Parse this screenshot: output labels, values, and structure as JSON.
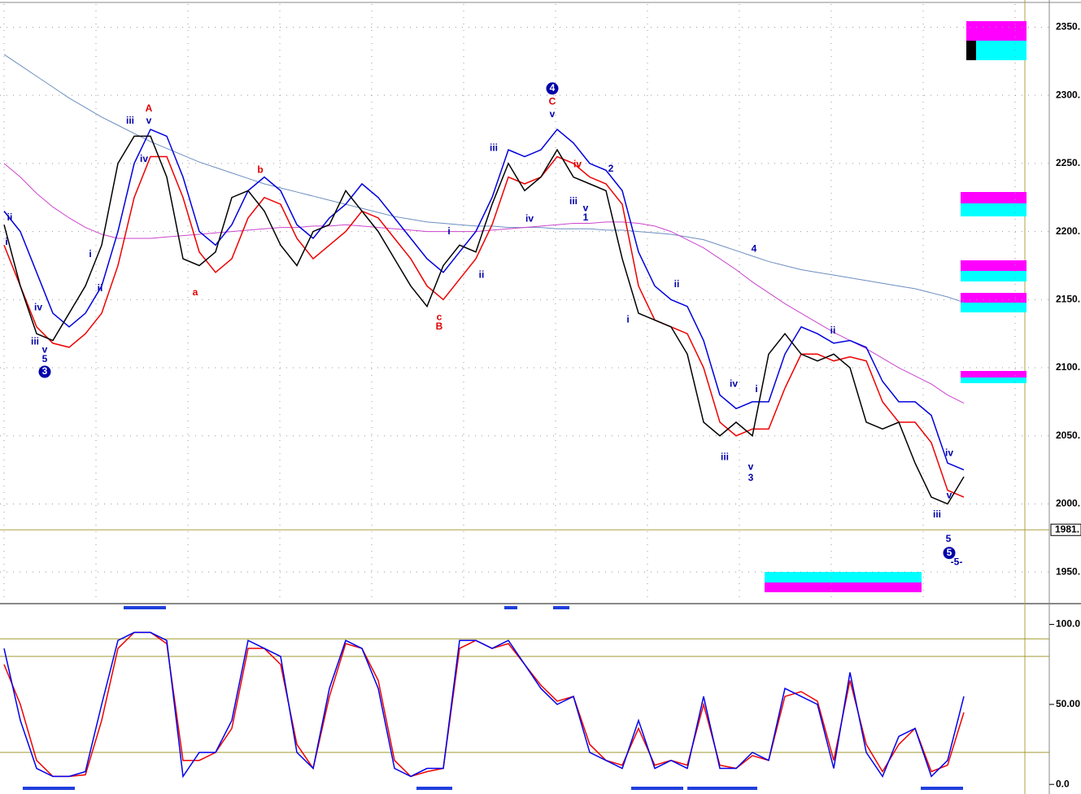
{
  "chart_data": [
    {
      "type": "line",
      "ylim": [
        1928,
        2367
      ],
      "yticks": [
        {
          "value": 1950,
          "label": "1950."
        },
        {
          "value": 2000,
          "label": "2000."
        },
        {
          "value": 2050,
          "label": "2050."
        },
        {
          "value": 2100,
          "label": "2100."
        },
        {
          "value": 2150,
          "label": "2150."
        },
        {
          "value": 2200,
          "label": "2200."
        },
        {
          "value": 2250,
          "label": "2250."
        },
        {
          "value": 2300,
          "label": "2300."
        },
        {
          "value": 2350,
          "label": "2350."
        }
      ],
      "grid": true,
      "last_price": {
        "value": 1981,
        "label": "1981."
      },
      "series": [
        {
          "color": "#6c8ec0",
          "width": 1,
          "values": [
            2330,
            2322,
            2314,
            2306,
            2298,
            2291,
            2284,
            2278,
            2272,
            2266,
            2261,
            2256,
            2251,
            2247,
            2243,
            2239,
            2235,
            2232,
            2229,
            2226,
            2223,
            2220,
            2217,
            2214,
            2211,
            2209,
            2207,
            2206,
            2205,
            2204,
            2204,
            2203,
            2203,
            2203,
            2202,
            2202,
            2202,
            2201,
            2201,
            2200,
            2199,
            2198,
            2196,
            2194,
            2190,
            2186,
            2182,
            2178,
            2175,
            2172,
            2170,
            2168,
            2166,
            2164,
            2162,
            2160,
            2158,
            2155,
            2152,
            2148
          ]
        },
        {
          "color": "#cc44cc",
          "width": 1,
          "values": [
            2250,
            2240,
            2228,
            2218,
            2210,
            2203,
            2198,
            2195,
            2195,
            2195,
            2196,
            2197,
            2198,
            2199,
            2200,
            2201,
            2202,
            2203,
            2203,
            2204,
            2204,
            2205,
            2204,
            2203,
            2202,
            2201,
            2200,
            2200,
            2200,
            2200,
            2201,
            2202,
            2203,
            2204,
            2205,
            2206,
            2206,
            2207,
            2207,
            2206,
            2204,
            2200,
            2194,
            2188,
            2180,
            2172,
            2163,
            2155,
            2147,
            2140,
            2133,
            2126,
            2120,
            2114,
            2107,
            2100,
            2094,
            2088,
            2080,
            2074
          ]
        },
        {
          "color": "#0000dd",
          "width": 1.5,
          "values": [
            2215,
            2200,
            2170,
            2140,
            2130,
            2140,
            2160,
            2200,
            2250,
            2275,
            2270,
            2240,
            2200,
            2190,
            2205,
            2230,
            2240,
            2230,
            2205,
            2195,
            2210,
            2220,
            2235,
            2225,
            2210,
            2195,
            2180,
            2170,
            2185,
            2200,
            2225,
            2260,
            2255,
            2260,
            2275,
            2265,
            2250,
            2245,
            2230,
            2185,
            2160,
            2150,
            2145,
            2120,
            2080,
            2070,
            2075,
            2075,
            2110,
            2130,
            2125,
            2118,
            2120,
            2115,
            2090,
            2075,
            2075,
            2065,
            2030,
            2025
          ]
        },
        {
          "color": "#ee0000",
          "width": 1.5,
          "values": [
            2190,
            2160,
            2130,
            2118,
            2115,
            2125,
            2140,
            2175,
            2225,
            2255,
            2255,
            2225,
            2185,
            2170,
            2180,
            2210,
            2225,
            2220,
            2195,
            2180,
            2190,
            2200,
            2215,
            2210,
            2195,
            2180,
            2160,
            2150,
            2165,
            2180,
            2205,
            2240,
            2235,
            2240,
            2255,
            2250,
            2240,
            2235,
            2220,
            2160,
            2135,
            2130,
            2125,
            2100,
            2060,
            2050,
            2055,
            2055,
            2085,
            2110,
            2110,
            2105,
            2108,
            2105,
            2075,
            2060,
            2060,
            2045,
            2010,
            2005
          ]
        },
        {
          "color": "#000000",
          "width": 1.5,
          "values": [
            2205,
            2160,
            2125,
            2120,
            2140,
            2160,
            2190,
            2250,
            2270,
            2270,
            2240,
            2180,
            2175,
            2185,
            2225,
            2230,
            2215,
            2190,
            2175,
            2200,
            2205,
            2230,
            2215,
            2200,
            2180,
            2160,
            2145,
            2175,
            2190,
            2185,
            2220,
            2250,
            2230,
            2240,
            2260,
            2240,
            2235,
            2230,
            2180,
            2140,
            2135,
            2130,
            2110,
            2060,
            2050,
            2060,
            2050,
            2110,
            2125,
            2110,
            2105,
            2110,
            2100,
            2060,
            2055,
            2060,
            2030,
            2005,
            2000,
            2020
          ]
        }
      ],
      "annotations": [
        {
          "text": "3",
          "x": 2.5,
          "y": 2097,
          "color": "#0000aa",
          "circled": true
        },
        {
          "text": "5",
          "x": 2.5,
          "y": 2106,
          "color": "#0000aa"
        },
        {
          "text": "v",
          "x": 2.5,
          "y": 2113,
          "color": "#0000aa"
        },
        {
          "text": "iii",
          "x": 1.9,
          "y": 2119,
          "color": "#0000aa"
        },
        {
          "text": "iv",
          "x": 2.1,
          "y": 2144,
          "color": "#0000aa"
        },
        {
          "text": "ii",
          "x": 0.35,
          "y": 2210,
          "color": "#0000aa"
        },
        {
          "text": "i",
          "x": 0.15,
          "y": 2192,
          "color": "#0000aa"
        },
        {
          "text": "i",
          "x": 5.3,
          "y": 2183,
          "color": "#0000aa"
        },
        {
          "text": "ii",
          "x": 5.9,
          "y": 2158,
          "color": "#0000aa"
        },
        {
          "text": "iii",
          "x": 7.75,
          "y": 2281,
          "color": "#0000aa"
        },
        {
          "text": "v",
          "x": 8.9,
          "y": 2281,
          "color": "#0000aa"
        },
        {
          "text": "A",
          "x": 8.9,
          "y": 2290,
          "color": "#dd0000"
        },
        {
          "text": "iv",
          "x": 8.6,
          "y": 2253,
          "color": "#0000aa"
        },
        {
          "text": "a",
          "x": 11.75,
          "y": 2155,
          "color": "#dd0000"
        },
        {
          "text": "b",
          "x": 15.75,
          "y": 2245,
          "color": "#dd0000"
        },
        {
          "text": "c",
          "x": 26.75,
          "y": 2137,
          "color": "#dd0000"
        },
        {
          "text": "B",
          "x": 26.75,
          "y": 2130,
          "color": "#dd0000"
        },
        {
          "text": "i",
          "x": 27.35,
          "y": 2200,
          "color": "#0000aa"
        },
        {
          "text": "ii",
          "x": 29.35,
          "y": 2168,
          "color": "#0000aa"
        },
        {
          "text": "iii",
          "x": 30.1,
          "y": 2261,
          "color": "#0000aa"
        },
        {
          "text": "iv",
          "x": 32.3,
          "y": 2209,
          "color": "#0000aa"
        },
        {
          "text": "4",
          "x": 33.7,
          "y": 2305,
          "color": "#0000aa",
          "circled": true
        },
        {
          "text": "C",
          "x": 33.7,
          "y": 2295,
          "color": "#dd0000"
        },
        {
          "text": "v",
          "x": 33.7,
          "y": 2286,
          "color": "#0000aa"
        },
        {
          "text": "iv",
          "x": 35.25,
          "y": 2249,
          "color": "#dd0000"
        },
        {
          "text": "iii",
          "x": 35,
          "y": 2222,
          "color": "#0000aa"
        },
        {
          "text": "v",
          "x": 35.75,
          "y": 2217,
          "color": "#0000aa"
        },
        {
          "text": "1",
          "x": 35.75,
          "y": 2210,
          "color": "#0000aa"
        },
        {
          "text": "2",
          "x": 37.3,
          "y": 2246,
          "color": "#0000aa"
        },
        {
          "text": "i",
          "x": 38.35,
          "y": 2135,
          "color": "#0000aa"
        },
        {
          "text": "ii",
          "x": 41.35,
          "y": 2161,
          "color": "#0000aa"
        },
        {
          "text": "4",
          "x": 46.1,
          "y": 2187,
          "color": "#0000aa"
        },
        {
          "text": "iv",
          "x": 44.85,
          "y": 2088,
          "color": "#0000aa"
        },
        {
          "text": "i",
          "x": 46.25,
          "y": 2084,
          "color": "#0000aa"
        },
        {
          "text": "iii",
          "x": 44.3,
          "y": 2034,
          "color": "#0000aa"
        },
        {
          "text": "v",
          "x": 45.9,
          "y": 2027,
          "color": "#0000aa"
        },
        {
          "text": "3",
          "x": 45.9,
          "y": 2019,
          "color": "#0000aa"
        },
        {
          "text": "ii",
          "x": 50.95,
          "y": 2127,
          "color": "#0000aa"
        },
        {
          "text": "iv",
          "x": 58.1,
          "y": 2037,
          "color": "#0000aa"
        },
        {
          "text": "v",
          "x": 58.1,
          "y": 2006,
          "color": "#0000aa"
        },
        {
          "text": "iii",
          "x": 57.35,
          "y": 1992,
          "color": "#0000aa"
        },
        {
          "text": "5",
          "x": 58.05,
          "y": 1974,
          "color": "#0000aa"
        },
        {
          "text": "5",
          "x": 58.1,
          "y": 1964,
          "color": "#0000aa",
          "circled": true
        },
        {
          "text": "-5-",
          "x": 58.55,
          "y": 1957,
          "color": "#0000aa"
        }
      ]
    },
    {
      "type": "line",
      "ylim": [
        -6,
        113
      ],
      "yticks": [
        {
          "value": 0,
          "label": "0.0"
        },
        {
          "value": 50,
          "label": "50.00"
        },
        {
          "value": 100,
          "label": "100.0"
        }
      ],
      "hlines": [
        91,
        80,
        20
      ],
      "series": [
        {
          "color": "#ee0000",
          "width": 1.5,
          "values": [
            75,
            50,
            15,
            5,
            5,
            6,
            40,
            85,
            95,
            95,
            88,
            15,
            15,
            20,
            35,
            85,
            85,
            75,
            25,
            10,
            55,
            88,
            85,
            65,
            15,
            5,
            8,
            10,
            85,
            90,
            85,
            88,
            75,
            62,
            52,
            55,
            25,
            15,
            12,
            35,
            12,
            15,
            12,
            50,
            12,
            10,
            18,
            15,
            55,
            58,
            52,
            15,
            65,
            25,
            8,
            25,
            35,
            8,
            12,
            45
          ]
        },
        {
          "color": "#0000ee",
          "width": 1.5,
          "values": [
            85,
            40,
            10,
            5,
            5,
            8,
            50,
            90,
            95,
            95,
            90,
            5,
            20,
            20,
            40,
            90,
            85,
            80,
            20,
            10,
            60,
            90,
            85,
            60,
            10,
            5,
            10,
            10,
            90,
            90,
            85,
            90,
            75,
            60,
            50,
            55,
            20,
            15,
            10,
            40,
            10,
            15,
            10,
            55,
            10,
            10,
            20,
            15,
            60,
            55,
            50,
            10,
            70,
            20,
            5,
            30,
            35,
            5,
            15,
            55
          ]
        }
      ]
    }
  ]
}
